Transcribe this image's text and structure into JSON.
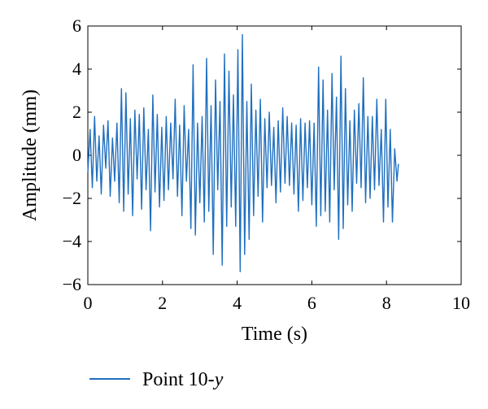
{
  "chart_data": {
    "type": "line",
    "title": "",
    "xlabel": "Time (s)",
    "ylabel": "Amplitude (mm)",
    "xlim": [
      0,
      10
    ],
    "ylim": [
      -6,
      6
    ],
    "xticks": [
      0,
      2,
      4,
      6,
      8,
      10
    ],
    "yticks": [
      6,
      4,
      2,
      0,
      -2,
      -4,
      -6
    ],
    "ytick_labels": [
      "6",
      "4",
      "2",
      "0",
      "−2",
      "−4",
      "−6"
    ],
    "grid": false,
    "legend_position": "bottom-left",
    "series": [
      {
        "name": "Point 10-y",
        "name_prefix": "Point 10-",
        "name_italic": "y",
        "color": "#1f6fbf",
        "x": [
          0.0,
          0.06,
          0.12,
          0.18,
          0.24,
          0.3,
          0.36,
          0.42,
          0.48,
          0.54,
          0.6,
          0.66,
          0.72,
          0.78,
          0.84,
          0.9,
          0.96,
          1.02,
          1.08,
          1.14,
          1.2,
          1.26,
          1.32,
          1.38,
          1.44,
          1.5,
          1.56,
          1.62,
          1.68,
          1.74,
          1.8,
          1.86,
          1.92,
          1.98,
          2.04,
          2.1,
          2.16,
          2.22,
          2.28,
          2.34,
          2.4,
          2.46,
          2.52,
          2.58,
          2.64,
          2.7,
          2.76,
          2.82,
          2.88,
          2.94,
          3.0,
          3.06,
          3.12,
          3.18,
          3.24,
          3.3,
          3.36,
          3.42,
          3.48,
          3.54,
          3.6,
          3.66,
          3.72,
          3.78,
          3.84,
          3.9,
          3.96,
          4.02,
          4.08,
          4.14,
          4.2,
          4.26,
          4.32,
          4.38,
          4.44,
          4.5,
          4.56,
          4.62,
          4.68,
          4.74,
          4.8,
          4.86,
          4.92,
          4.98,
          5.04,
          5.1,
          5.16,
          5.22,
          5.28,
          5.34,
          5.4,
          5.46,
          5.52,
          5.58,
          5.64,
          5.7,
          5.76,
          5.82,
          5.88,
          5.94,
          6.0,
          6.06,
          6.12,
          6.18,
          6.24,
          6.3,
          6.36,
          6.42,
          6.48,
          6.54,
          6.6,
          6.66,
          6.72,
          6.78,
          6.84,
          6.9,
          6.96,
          7.02,
          7.08,
          7.14,
          7.2,
          7.26,
          7.32,
          7.38,
          7.44,
          7.5,
          7.56,
          7.62,
          7.68,
          7.74,
          7.8,
          7.86,
          7.92,
          7.98,
          8.04,
          8.1,
          8.16,
          8.22,
          8.28,
          8.32
        ],
        "values": [
          -0.8,
          1.2,
          -1.5,
          1.8,
          -1.2,
          0.9,
          -1.8,
          1.4,
          -0.6,
          1.6,
          -1.9,
          0.8,
          -1.2,
          1.5,
          -2.2,
          3.1,
          -2.6,
          2.9,
          -1.8,
          1.7,
          -2.8,
          2.1,
          -1.1,
          1.9,
          -2.5,
          2.2,
          -1.6,
          1.2,
          -3.5,
          2.8,
          -1.7,
          1.9,
          -2.4,
          1.3,
          -2.1,
          1.8,
          -1.6,
          1.5,
          -1.1,
          2.6,
          -1.9,
          1.4,
          -2.8,
          2.3,
          -1.2,
          1.2,
          -3.4,
          4.2,
          -3.7,
          1.5,
          -2.2,
          1.8,
          -3.1,
          4.5,
          -2.6,
          2.3,
          -4.6,
          3.5,
          -1.6,
          2.5,
          -5.1,
          4.7,
          -3.3,
          3.9,
          -2.4,
          2.8,
          -3.3,
          4.9,
          -5.4,
          5.6,
          -4.6,
          2.5,
          -3.9,
          3.3,
          -2.8,
          2.1,
          -1.9,
          2.6,
          -3.1,
          1.7,
          -1.5,
          2.0,
          -1.4,
          1.3,
          -2.2,
          1.6,
          -1.7,
          2.2,
          -1.3,
          1.8,
          -1.4,
          1.5,
          -1.8,
          1.4,
          -2.6,
          1.7,
          -2.1,
          1.5,
          -1.5,
          1.6,
          -2.3,
          1.5,
          -3.3,
          4.1,
          -2.8,
          3.5,
          -2.6,
          2.1,
          -3.1,
          3.8,
          -1.6,
          2.7,
          -3.9,
          4.6,
          -3.4,
          3.1,
          -2.3,
          1.6,
          -2.6,
          2.1,
          -1.3,
          2.4,
          -1.5,
          3.6,
          -2.2,
          1.8,
          -2.0,
          1.8,
          -1.6,
          2.6,
          -1.4,
          1.2,
          -3.1,
          2.6,
          -2.4,
          1.2,
          -3.1,
          0.3,
          -1.2,
          -0.4
        ]
      }
    ]
  }
}
